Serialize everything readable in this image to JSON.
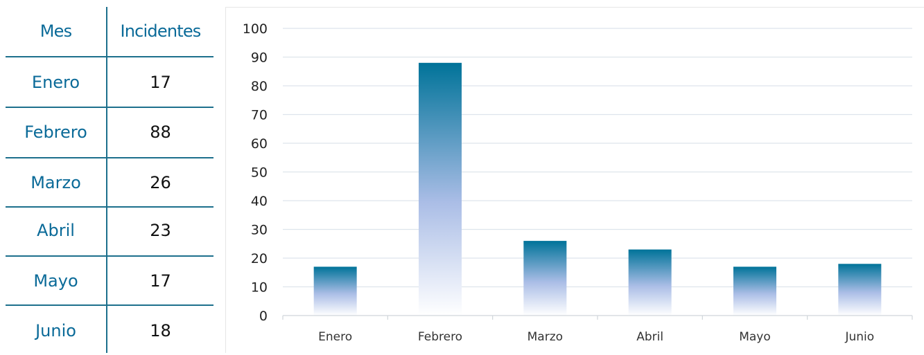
{
  "table": {
    "header": {
      "month": "Mes",
      "incidents": "Incidentes"
    },
    "rows": [
      {
        "month": "Enero",
        "incidents": "17"
      },
      {
        "month": "Febrero",
        "incidents": "88"
      },
      {
        "month": "Marzo",
        "incidents": "26"
      },
      {
        "month": "Abril",
        "incidents": "23"
      },
      {
        "month": "Mayo",
        "incidents": "17"
      },
      {
        "month": "Junio",
        "incidents": "18"
      }
    ]
  },
  "chart_data": {
    "type": "bar",
    "categories": [
      "Enero",
      "Febrero",
      "Marzo",
      "Abril",
      "Mayo",
      "Junio"
    ],
    "values": [
      17,
      88,
      26,
      23,
      17,
      18
    ],
    "title": "",
    "xlabel": "",
    "ylabel": "",
    "ylim": [
      0,
      100
    ],
    "yticks": [
      0,
      10,
      20,
      30,
      40,
      50,
      60,
      70,
      80,
      90,
      100
    ],
    "grid": true,
    "legend": "none",
    "colors": {
      "bar_top": "#007399",
      "bar_mid": "#aabde6",
      "bar_bottom": "#ffffff",
      "text": "#0a6a98"
    }
  }
}
